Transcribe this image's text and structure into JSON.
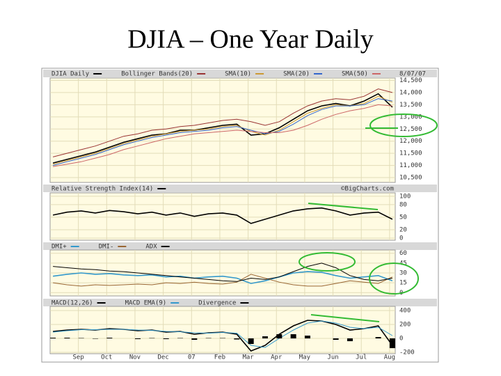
{
  "title": "DJIA – One Year Daily",
  "chart_data": [
    {
      "type": "line",
      "annotations": [
        "8/07/07"
      ],
      "x": [
        0.1,
        0.6,
        1.1,
        1.6,
        2.1,
        2.6,
        3.1,
        3.6,
        4.1,
        4.6,
        5.1,
        5.6,
        6.1,
        6.6,
        7.1,
        7.6,
        8.1,
        8.6,
        9.1,
        9.6,
        10.1,
        10.6,
        11.1,
        11.6,
        12.1
      ],
      "xlim": [
        0,
        12.2
      ],
      "ylim": [
        10300,
        14600
      ],
      "yticks": [
        {
          "value": 14500,
          "label": "14,500"
        },
        {
          "value": 14000,
          "label": "14,000"
        },
        {
          "value": 13500,
          "label": "13,500"
        },
        {
          "value": 13000,
          "label": "13,000"
        },
        {
          "value": 12500,
          "label": "12,500"
        },
        {
          "value": 12000,
          "label": "12,000"
        },
        {
          "value": 11500,
          "label": "11,500"
        },
        {
          "value": 11000,
          "label": "11,000"
        },
        {
          "value": 10500,
          "label": "10,500"
        }
      ],
      "grid": true,
      "series": [
        {
          "name": "DJIA Daily",
          "color": "#000000",
          "values": [
            11100,
            11250,
            11400,
            11550,
            11750,
            11950,
            12100,
            12250,
            12300,
            12450,
            12450,
            12550,
            12650,
            12700,
            12250,
            12300,
            12550,
            12900,
            13250,
            13450,
            13550,
            13450,
            13650,
            13950,
            13400
          ]
        },
        {
          "name": "Bollinger Bands(20)",
          "color": "#993333",
          "values": [
            11350,
            11500,
            11650,
            11800,
            12000,
            12200,
            12300,
            12450,
            12500,
            12600,
            12650,
            12750,
            12850,
            12900,
            12800,
            12650,
            12800,
            13150,
            13450,
            13650,
            13750,
            13700,
            13850,
            14150,
            14000
          ]
        },
        {
          "name": "SMA(10)",
          "color": "#cc9933",
          "values": [
            11050,
            11200,
            11350,
            11500,
            11700,
            11900,
            12050,
            12200,
            12300,
            12400,
            12450,
            12500,
            12600,
            12650,
            12400,
            12250,
            12450,
            12800,
            13150,
            13350,
            13500,
            13450,
            13550,
            13850,
            13600
          ]
        },
        {
          "name": "SMA(20)",
          "color": "#3366cc",
          "values": [
            11000,
            11150,
            11300,
            11450,
            11650,
            11850,
            12000,
            12150,
            12250,
            12350,
            12400,
            12450,
            12550,
            12600,
            12450,
            12300,
            12400,
            12700,
            13050,
            13300,
            13450,
            13450,
            13500,
            13750,
            13650
          ]
        },
        {
          "name": "SMA(50)",
          "color": "#cc6666",
          "values": [
            10950,
            11050,
            11150,
            11300,
            11450,
            11650,
            11800,
            11950,
            12100,
            12200,
            12300,
            12350,
            12400,
            12450,
            12400,
            12350,
            12350,
            12450,
            12650,
            12900,
            13100,
            13250,
            13350,
            13500,
            13450
          ]
        }
      ]
    },
    {
      "type": "line",
      "annotations": [
        "©BigCharts.com"
      ],
      "x": [
        0.1,
        0.6,
        1.1,
        1.6,
        2.1,
        2.6,
        3.1,
        3.6,
        4.1,
        4.6,
        5.1,
        5.6,
        6.1,
        6.6,
        7.1,
        7.6,
        8.1,
        8.6,
        9.1,
        9.6,
        10.1,
        10.6,
        11.1,
        11.6,
        12.1
      ],
      "xlim": [
        0,
        12.2
      ],
      "ylim": [
        -5,
        108
      ],
      "yticks": [
        100,
        80,
        50,
        20,
        0
      ],
      "grid": true,
      "series": [
        {
          "name": "Relative Strength Index(14)",
          "color": "#000000",
          "values": [
            55,
            62,
            65,
            60,
            66,
            63,
            58,
            62,
            55,
            60,
            52,
            58,
            60,
            55,
            35,
            45,
            55,
            65,
            70,
            72,
            65,
            55,
            60,
            62,
            45
          ]
        }
      ]
    },
    {
      "type": "line",
      "annotations": [],
      "x": [
        0.1,
        0.6,
        1.1,
        1.6,
        2.1,
        2.6,
        3.1,
        3.6,
        4.1,
        4.6,
        5.1,
        5.6,
        6.1,
        6.6,
        7.1,
        7.6,
        8.1,
        8.6,
        9.1,
        9.6,
        10.1,
        10.6,
        11.1,
        11.6,
        12.1
      ],
      "xlim": [
        0,
        12.2
      ],
      "ylim": [
        -5,
        65
      ],
      "yticks": [
        60,
        45,
        30,
        15,
        0
      ],
      "grid": true,
      "series": [
        {
          "name": "DMI+",
          "color": "#3399cc",
          "values": [
            25,
            28,
            30,
            28,
            29,
            27,
            26,
            27,
            24,
            25,
            22,
            24,
            25,
            22,
            14,
            18,
            24,
            30,
            32,
            31,
            26,
            22,
            24,
            26,
            18
          ]
        },
        {
          "name": "DMI-",
          "color": "#996633",
          "values": [
            15,
            12,
            10,
            12,
            11,
            12,
            13,
            12,
            15,
            14,
            16,
            14,
            13,
            16,
            28,
            22,
            16,
            12,
            10,
            10,
            14,
            18,
            16,
            14,
            24
          ]
        },
        {
          "name": "ADX",
          "color": "#000000",
          "values": [
            40,
            38,
            36,
            35,
            33,
            32,
            30,
            28,
            26,
            24,
            22,
            20,
            18,
            17,
            22,
            20,
            24,
            32,
            40,
            45,
            38,
            26,
            20,
            18,
            22
          ]
        }
      ]
    },
    {
      "type": "line",
      "annotations": [],
      "x": [
        0.1,
        0.6,
        1.1,
        1.6,
        2.1,
        2.6,
        3.1,
        3.6,
        4.1,
        4.6,
        5.1,
        5.6,
        6.1,
        6.6,
        7.1,
        7.6,
        8.1,
        8.6,
        9.1,
        9.6,
        10.1,
        10.6,
        11.1,
        11.6,
        12.1
      ],
      "xlim": [
        0,
        12.2
      ],
      "xticks": [
        {
          "value": 1,
          "label": "Sep"
        },
        {
          "value": 2,
          "label": "Oct"
        },
        {
          "value": 3,
          "label": "Nov"
        },
        {
          "value": 4,
          "label": "Dec"
        },
        {
          "value": 5,
          "label": "07"
        },
        {
          "value": 6,
          "label": "Feb"
        },
        {
          "value": 7,
          "label": "Mar"
        },
        {
          "value": 8,
          "label": "Apr"
        },
        {
          "value": 9,
          "label": "May"
        },
        {
          "value": 10,
          "label": "Jun"
        },
        {
          "value": 11,
          "label": "Jul"
        },
        {
          "value": 12,
          "label": "Aug"
        }
      ],
      "ylim": [
        -220,
        460
      ],
      "yticks": [
        400,
        200,
        0,
        -200
      ],
      "grid": true,
      "series": [
        {
          "name": "MACD(12,26)",
          "color": "#000000",
          "values": [
            100,
            120,
            130,
            120,
            140,
            130,
            110,
            120,
            90,
            100,
            60,
            80,
            90,
            60,
            -180,
            -100,
            60,
            180,
            260,
            250,
            200,
            120,
            140,
            180,
            -100
          ]
        },
        {
          "name": "MACD EMA(9)",
          "color": "#3399cc",
          "values": [
            90,
            110,
            125,
            125,
            130,
            130,
            120,
            115,
            100,
            95,
            80,
            75,
            85,
            75,
            -100,
            -130,
            0,
            120,
            220,
            250,
            220,
            160,
            140,
            160,
            40
          ]
        },
        {
          "name": "Divergence",
          "color": "#000000",
          "type": "bar",
          "values": [
            10,
            10,
            5,
            -5,
            10,
            0,
            -10,
            5,
            -10,
            5,
            -20,
            5,
            5,
            -15,
            -80,
            30,
            60,
            60,
            40,
            0,
            -20,
            -40,
            0,
            20,
            -140
          ]
        }
      ]
    }
  ]
}
